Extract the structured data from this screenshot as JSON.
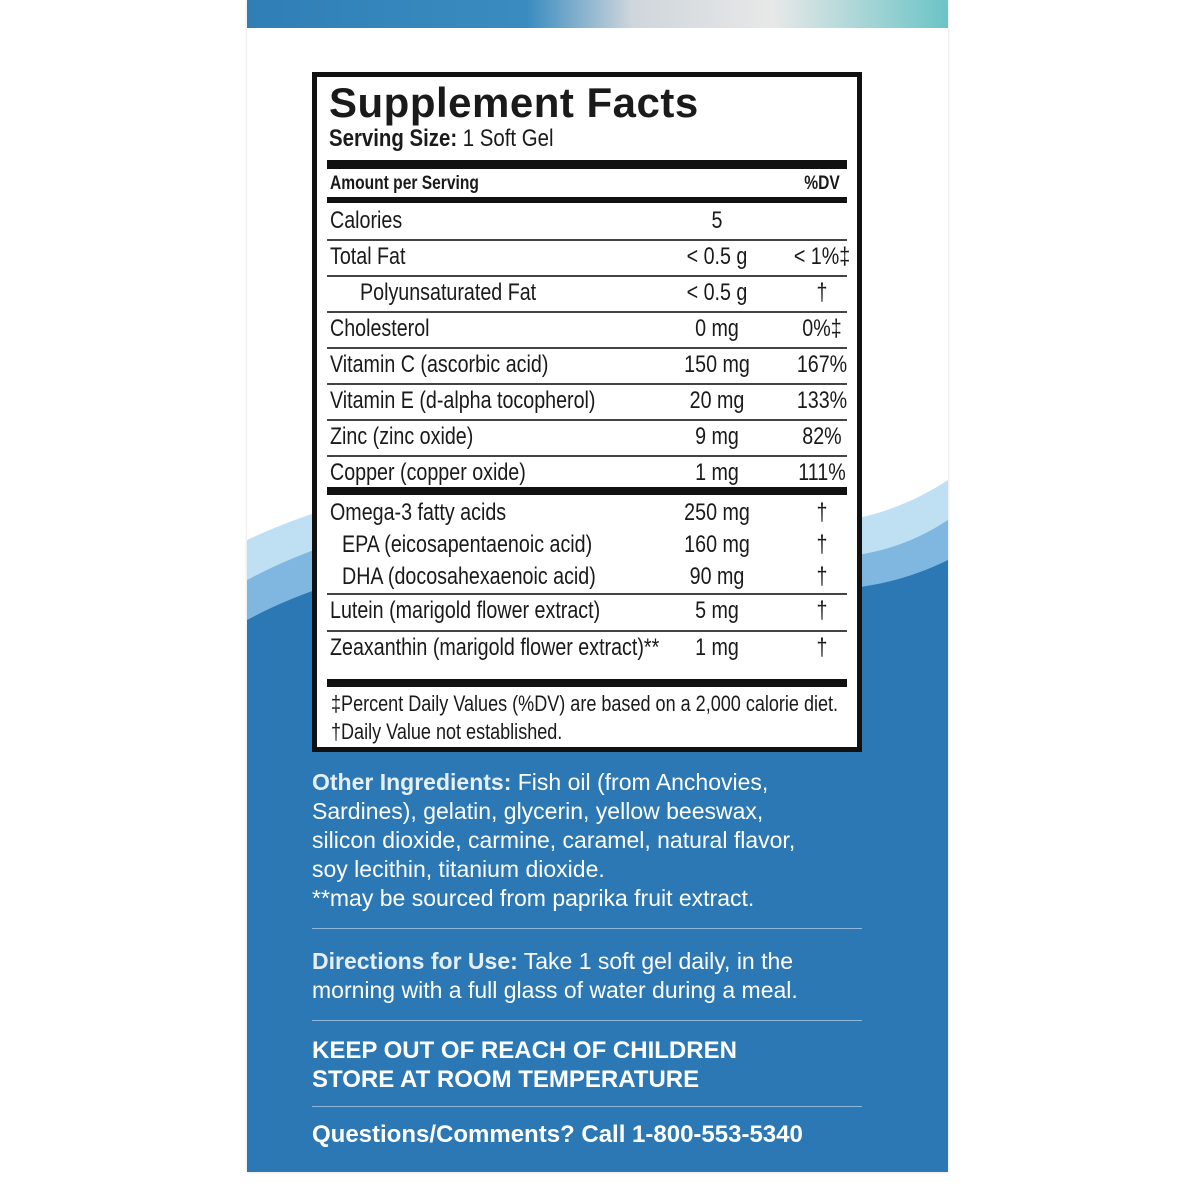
{
  "panel": {
    "title": "Supplement Facts",
    "serving_label": "Serving Size:",
    "serving_value": "1 Soft Gel",
    "amount_header": "Amount per Serving",
    "dv_header": "%DV"
  },
  "rows": [
    {
      "name": "Calories",
      "amount": "5",
      "dv": ""
    },
    {
      "name": "Total Fat",
      "amount": "< 0.5 g",
      "dv": "< 1%‡"
    },
    {
      "name": "Polyunsaturated Fat",
      "amount": "< 0.5 g",
      "dv": "†"
    },
    {
      "name": "Cholesterol",
      "amount": "0 mg",
      "dv": "0%‡"
    },
    {
      "name": "Vitamin C (ascorbic acid)",
      "amount": "150 mg",
      "dv": "167%"
    },
    {
      "name": "Vitamin E (d-alpha tocopherol)",
      "amount": "20 mg",
      "dv": "133%"
    },
    {
      "name": "Zinc (zinc oxide)",
      "amount": "9 mg",
      "dv": "82%"
    },
    {
      "name": "Copper (copper oxide)",
      "amount": "1 mg",
      "dv": "111%"
    },
    {
      "name": "Omega-3 fatty acids",
      "amount": "250 mg",
      "dv": "†"
    },
    {
      "name": "EPA (eicosapentaenoic acid)",
      "amount": "160 mg",
      "dv": "†"
    },
    {
      "name": "DHA (docosahexaenoic acid)",
      "amount": "90 mg",
      "dv": "†"
    },
    {
      "name": "Lutein (marigold flower extract)",
      "amount": "5 mg",
      "dv": "†"
    },
    {
      "name": "Zeaxanthin (marigold flower extract)**",
      "amount": "1 mg",
      "dv": "†"
    }
  ],
  "footnotes": [
    "‡Percent Daily Values (%DV) are based on a 2,000 calorie diet.",
    "†Daily Value not established."
  ],
  "ingredients": {
    "label": "Other Ingredients:",
    "lines": [
      " Fish oil (from Anchovies,",
      "Sardines), gelatin, glycerin, yellow beeswax,",
      "silicon dioxide, carmine, caramel, natural flavor,",
      "soy lecithin, titanium dioxide.",
      "**may be sourced from paprika fruit extract."
    ]
  },
  "directions": {
    "label": "Directions for Use:",
    "lines": [
      " Take 1 soft gel daily, in the",
      "morning with a full glass of water during a meal."
    ]
  },
  "warnings": [
    "KEEP OUT OF REACH OF CHILDREN",
    "STORE AT ROOM TEMPERATURE"
  ],
  "contact": "Questions/Comments? Call 1-800-553-5340",
  "colors": {
    "box_blue": "#2b78b5",
    "light_wave": "#8ec3e6"
  }
}
